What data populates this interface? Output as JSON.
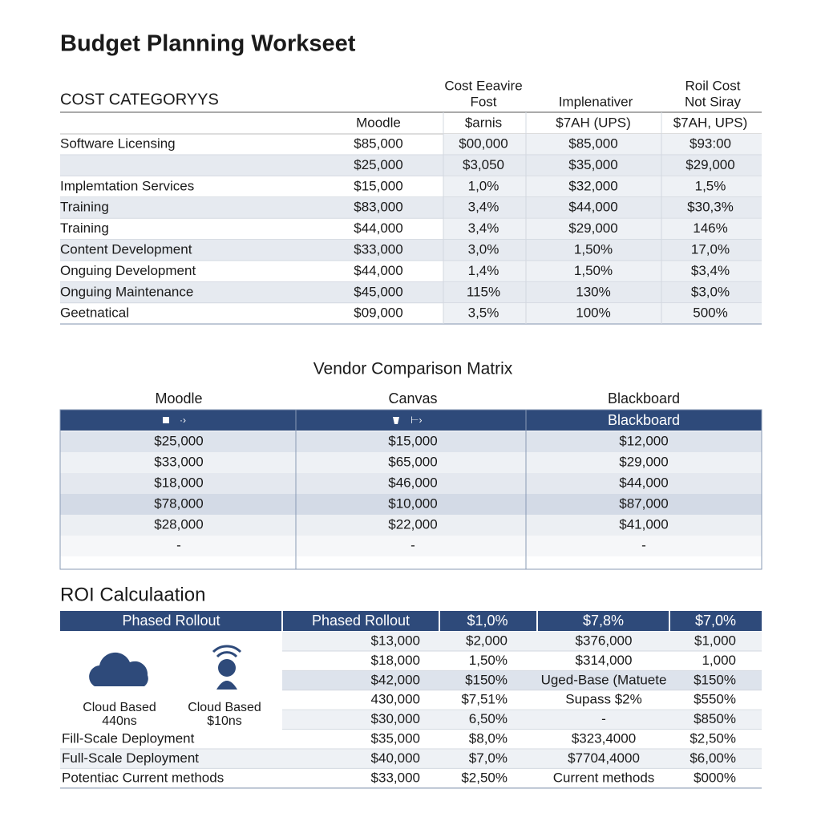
{
  "header": {
    "title": "Budget Planning Workseet"
  },
  "cost_table": {
    "title": "COST CATEGORYYS",
    "columns": [
      [
        "Cost Eeavire",
        "Fost"
      ],
      [
        "Implenativer"
      ],
      [
        "Roil Cost",
        "Not Siray"
      ]
    ],
    "subheaders": [
      "Moodle",
      "$arnis",
      "$7AH (UPS)",
      "$7AH, UPS)"
    ],
    "rows": [
      [
        "Software Licensing",
        "$85,000",
        "$00,000",
        "$85,000",
        "$93:00"
      ],
      [
        null,
        "$25,000",
        "$3,050",
        "$35,000",
        "$29,000"
      ],
      [
        "Implemtation Services",
        "$15,000",
        "1,0%",
        "$32,000",
        "1,5%"
      ],
      [
        "Training",
        "$83,000",
        "3,4%",
        "$44,000",
        "$30,3%"
      ],
      [
        "Training",
        "$44,000",
        "3,4%",
        "$29,000",
        "146%"
      ],
      [
        "Content Development",
        "$33,000",
        "3,0%",
        "1,50%",
        "17,0%"
      ],
      [
        "Onguing Development",
        "$44,000",
        "1,4%",
        "1,50%",
        "$3,4%"
      ],
      [
        "Onguing Maintenance",
        "$45,000",
        "115%",
        "130%",
        "$3,0%"
      ],
      [
        "Geetnatical",
        "$09,000",
        "3,5%",
        "100%",
        "500%"
      ]
    ]
  },
  "vendor": {
    "title": "Vendor Comparison Matrix",
    "columns": [
      "Moodle",
      "Canvas",
      "Blackboard"
    ],
    "header_label": "Blackboard",
    "rows": [
      [
        "$25,000",
        "$15,000",
        "$12,000"
      ],
      [
        "$33,000",
        "$65,000",
        "$29,000"
      ],
      [
        "$18,000",
        "$46,000",
        "$44,000"
      ],
      [
        "$78,000",
        "$10,000",
        "$87,000"
      ],
      [
        "$28,000",
        "$22,000",
        "$41,000"
      ],
      [
        "-",
        "-",
        "-"
      ]
    ]
  },
  "roi": {
    "title": "ROI Calculaation",
    "header": [
      "Phased Rollout",
      "Phased Rollout",
      "$1,0%",
      "$7,8%",
      "$7,0%"
    ],
    "cloud": [
      {
        "label": "Cloud Based",
        "sub": "440ns"
      },
      {
        "label": "Cloud Based",
        "sub": "$10ns"
      }
    ],
    "rows": [
      [
        null,
        "$13,000",
        "$2,000",
        "$376,000",
        "$1,000"
      ],
      [
        null,
        "$18,000",
        "1,50%",
        "$314,000",
        "1,000"
      ],
      [
        null,
        "$42,000",
        "$150%",
        "Uged-Base (Matuete",
        "$150%"
      ],
      [
        null,
        "430,000",
        "$7,51%",
        "Supass $2%",
        "$550%"
      ],
      [
        null,
        "$30,000",
        "6,50%",
        "-",
        "$850%"
      ],
      [
        "Fill-Scale Deployment",
        "$35,000",
        "$8,0%",
        "$323,4000",
        "$2,50%"
      ],
      [
        "Full-Scale Deployment",
        "$40,000",
        "$7,0%",
        "$7704,4000",
        "$6,00%"
      ],
      [
        "Potentiac Current methods",
        "$33,000",
        "$2,50%",
        "Current methods",
        "$000%"
      ]
    ]
  }
}
